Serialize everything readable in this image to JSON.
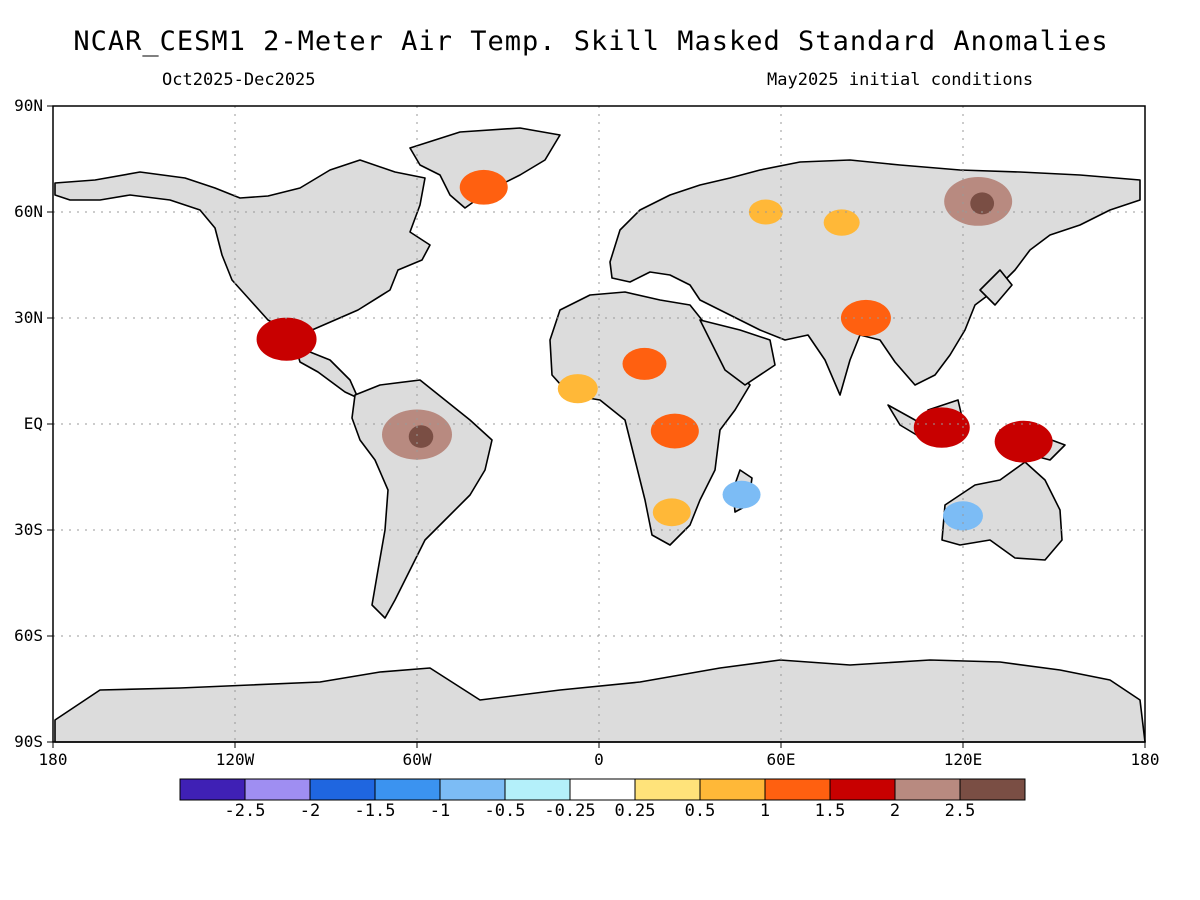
{
  "title": "NCAR_CESM1 2-Meter Air Temp. Skill Masked Standard Anomalies",
  "period": "Oct2025-Dec2025",
  "init": "May2025 initial conditions",
  "lat_labels": [
    "90N",
    "60N",
    "30N",
    "EQ",
    "30S",
    "60S",
    "90S"
  ],
  "lon_labels": [
    "180",
    "120W",
    "60W",
    "0",
    "60E",
    "120E",
    "180"
  ],
  "colorbar": {
    "labels": [
      "-2.5",
      "-2",
      "-1.5",
      "-1",
      "-0.5",
      "-0.25",
      "0.25",
      "0.5",
      "1",
      "1.5",
      "2",
      "2.5"
    ],
    "colors": [
      "#3f20b5",
      "#9f8ef2",
      "#1f66e0",
      "#3b93f0",
      "#7cbcf5",
      "#b4f0fa",
      "#ffffff",
      "#ffe37a",
      "#ffb838",
      "#ff6010",
      "#c80000",
      "#b88a80",
      "#7a4e44"
    ]
  },
  "colors": {
    "land": "#dcdcdc",
    "grid": "#999999"
  },
  "regions": [
    {
      "name": "east-siberia-anomaly",
      "lon": 125,
      "lat": 63,
      "value": 2.2
    },
    {
      "name": "amazon-anomaly",
      "lon": -60,
      "lat": -3,
      "value": 2.3
    },
    {
      "name": "mexico-anomaly",
      "lon": -103,
      "lat": 24,
      "value": 1.8
    },
    {
      "name": "new-guinea-anomaly",
      "lon": 140,
      "lat": -5,
      "value": 1.7
    },
    {
      "name": "borneo-anomaly",
      "lon": 113,
      "lat": -1,
      "value": 1.6
    },
    {
      "name": "tibet-anomaly",
      "lon": 88,
      "lat": 30,
      "value": 1.3
    },
    {
      "name": "greenland-anomaly",
      "lon": -38,
      "lat": 67,
      "value": 1.2
    },
    {
      "name": "central-africa-anomaly",
      "lon": 25,
      "lat": -2,
      "value": 1.2
    },
    {
      "name": "sahel-anomaly",
      "lon": 15,
      "lat": 17,
      "value": 1.0
    },
    {
      "name": "west-africa-anomaly",
      "lon": -7,
      "lat": 10,
      "value": 0.8
    },
    {
      "name": "southern-africa-anomaly",
      "lon": 24,
      "lat": -25,
      "value": 0.7
    },
    {
      "name": "siberia-band-anomaly",
      "lon": 80,
      "lat": 57,
      "value": 0.6
    },
    {
      "name": "west-siberia-anomaly",
      "lon": 55,
      "lat": 60,
      "value": 0.5
    },
    {
      "name": "australia-cold-anomaly",
      "lon": 120,
      "lat": -26,
      "value": -0.8
    },
    {
      "name": "madagascar-cold-anomaly",
      "lon": 47,
      "lat": -20,
      "value": -0.7
    }
  ]
}
